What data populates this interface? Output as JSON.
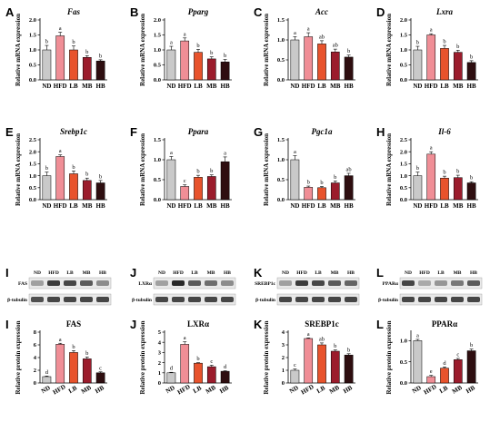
{
  "colors": {
    "ND": "#c9c9c9",
    "HFD": "#f08e96",
    "LB": "#e8532c",
    "MB": "#9b1c2c",
    "HB": "#2e0e10"
  },
  "chart_data": [
    {
      "panel": "A",
      "title": "Fas",
      "type": "bar",
      "ylabel": "Relative mRNA expression",
      "categories": [
        "ND",
        "HFD",
        "LB",
        "MB",
        "HB"
      ],
      "values": [
        1.0,
        1.47,
        1.0,
        0.75,
        0.63
      ],
      "errors": [
        0.15,
        0.12,
        0.13,
        0.06,
        0.04
      ],
      "letters": [
        "b",
        "a",
        "b",
        "b",
        "b"
      ],
      "ylim": [
        0,
        2.0
      ],
      "yticks": [
        "0.0",
        "0.5",
        "1.0",
        "1.5",
        "2.0"
      ]
    },
    {
      "panel": "B",
      "title": "Pparg",
      "type": "bar",
      "ylabel": "Relative mRNA expression",
      "categories": [
        "ND",
        "HFD",
        "LB",
        "MB",
        "HB"
      ],
      "values": [
        1.0,
        1.3,
        0.92,
        0.7,
        0.6
      ],
      "errors": [
        0.12,
        0.1,
        0.1,
        0.07,
        0.08
      ],
      "letters": [
        "a",
        "a",
        "b",
        "b",
        "b"
      ],
      "ylim": [
        0,
        2.0
      ],
      "yticks": [
        "0.0",
        "0.5",
        "1.0",
        "1.5",
        "2.0"
      ]
    },
    {
      "panel": "C",
      "title": "Acc",
      "type": "bar",
      "ylabel": "Relative mRNA expression",
      "categories": [
        "ND",
        "HFD",
        "LB",
        "MB",
        "HB"
      ],
      "values": [
        1.0,
        1.08,
        0.9,
        0.7,
        0.57
      ],
      "errors": [
        0.08,
        0.1,
        0.08,
        0.07,
        0.05
      ],
      "letters": [
        "a",
        "a",
        "ab",
        "ab",
        "b"
      ],
      "ylim": [
        0,
        1.5
      ],
      "yticks": [
        "0.0",
        "0.5",
        "1.0",
        "1.5"
      ]
    },
    {
      "panel": "D",
      "title": "Lxra",
      "type": "bar",
      "ylabel": "Relative mRNA expression",
      "categories": [
        "ND",
        "HFD",
        "LB",
        "MB",
        "HB"
      ],
      "values": [
        1.0,
        1.5,
        1.05,
        0.92,
        0.58
      ],
      "errors": [
        0.12,
        0.04,
        0.1,
        0.07,
        0.06
      ],
      "letters": [
        "b",
        "a",
        "b",
        "b",
        "b"
      ],
      "ylim": [
        0,
        2.0
      ],
      "yticks": [
        "0.0",
        "0.5",
        "1.0",
        "1.5",
        "2.0"
      ]
    },
    {
      "panel": "E",
      "title": "Srebp1c",
      "type": "bar",
      "ylabel": "Relative mRNA expression",
      "categories": [
        "ND",
        "HFD",
        "LB",
        "MB",
        "HB"
      ],
      "values": [
        1.0,
        1.8,
        1.08,
        0.8,
        0.7
      ],
      "errors": [
        0.15,
        0.07,
        0.12,
        0.1,
        0.1
      ],
      "letters": [
        "b",
        "a",
        "b",
        "b",
        "b"
      ],
      "ylim": [
        0,
        2.5
      ],
      "yticks": [
        "0.0",
        "0.5",
        "1.0",
        "1.5",
        "2.0",
        "2.5"
      ]
    },
    {
      "panel": "F",
      "title": "Ppara",
      "type": "bar",
      "ylabel": "Relative mRNA expression",
      "categories": [
        "ND",
        "HFD",
        "LB",
        "MB",
        "HB"
      ],
      "values": [
        1.0,
        0.33,
        0.56,
        0.58,
        0.95
      ],
      "errors": [
        0.08,
        0.04,
        0.05,
        0.04,
        0.12
      ],
      "letters": [
        "a",
        "c",
        "b",
        "b",
        "a"
      ],
      "ylim": [
        0,
        1.5
      ],
      "yticks": [
        "0.0",
        "0.5",
        "1.0",
        "1.5"
      ]
    },
    {
      "panel": "G",
      "title": "Pgc1a",
      "type": "bar",
      "ylabel": "Relative mRNA expression",
      "categories": [
        "ND",
        "HFD",
        "LB",
        "MB",
        "HB"
      ],
      "values": [
        1.0,
        0.31,
        0.3,
        0.42,
        0.6
      ],
      "errors": [
        0.1,
        0.03,
        0.03,
        0.05,
        0.06
      ],
      "letters": [
        "a",
        "b",
        "b",
        "b",
        "ab"
      ],
      "ylim": [
        0,
        1.5
      ],
      "yticks": [
        "0.0",
        "0.5",
        "1.0",
        "1.5"
      ]
    },
    {
      "panel": "H",
      "title": "Il-6",
      "type": "bar",
      "ylabel": "Relative mRNA expression",
      "categories": [
        "ND",
        "HFD",
        "LB",
        "MB",
        "HB"
      ],
      "values": [
        1.0,
        1.9,
        0.9,
        0.92,
        0.7
      ],
      "errors": [
        0.15,
        0.1,
        0.08,
        0.1,
        0.05
      ],
      "letters": [
        "b",
        "a",
        "b",
        "b",
        "b"
      ],
      "ylim": [
        0,
        2.5
      ],
      "yticks": [
        "0.0",
        "0.5",
        "1.0",
        "1.5",
        "2.0",
        "2.5"
      ]
    },
    {
      "panel": "I",
      "title": "FAS",
      "type": "bar",
      "ylabel": "Relative protein expression",
      "categories": [
        "ND",
        "HFD",
        "LB",
        "MB",
        "HB"
      ],
      "values": [
        1.0,
        6.1,
        4.8,
        3.8,
        1.6
      ],
      "errors": [
        0.1,
        0.15,
        0.3,
        0.3,
        0.15
      ],
      "letters": [
        "d",
        "a",
        "b",
        "b",
        "c"
      ],
      "ylim": [
        0,
        8
      ],
      "yticks": [
        "0",
        "2",
        "4",
        "6",
        "8"
      ]
    },
    {
      "panel": "J",
      "title": "LXRα",
      "type": "bar",
      "ylabel": "Relative protein expression",
      "categories": [
        "ND",
        "HFD",
        "LB",
        "MB",
        "HB"
      ],
      "values": [
        1.0,
        3.8,
        1.95,
        1.6,
        1.15
      ],
      "errors": [
        0.05,
        0.25,
        0.05,
        0.15,
        0.05
      ],
      "letters": [
        "d",
        "a",
        "b",
        "c",
        "d"
      ],
      "ylim": [
        0,
        5
      ],
      "yticks": [
        "0",
        "1",
        "2",
        "3",
        "4",
        "5"
      ]
    },
    {
      "panel": "K",
      "title": "SREBP1c",
      "type": "bar",
      "ylabel": "Relative protein expression",
      "categories": [
        "ND",
        "HFD",
        "LB",
        "MB",
        "HB"
      ],
      "values": [
        1.0,
        3.5,
        3.0,
        2.5,
        2.2
      ],
      "errors": [
        0.1,
        0.05,
        0.15,
        0.1,
        0.1
      ],
      "letters": [
        "c",
        "a",
        "ab",
        "b",
        "b"
      ],
      "ylim": [
        0,
        4
      ],
      "yticks": [
        "0",
        "1",
        "2",
        "3",
        "4"
      ]
    },
    {
      "panel": "L",
      "title": "PPARα",
      "type": "bar",
      "ylabel": "Relative protein expression",
      "categories": [
        "ND",
        "HFD",
        "LB",
        "MB",
        "HB"
      ],
      "values": [
        1.0,
        0.15,
        0.35,
        0.55,
        0.76
      ],
      "errors": [
        0.03,
        0.03,
        0.03,
        0.03,
        0.04
      ],
      "letters": [
        "a",
        "e",
        "d",
        "c",
        "b"
      ],
      "ylim": [
        0,
        1.2
      ],
      "yticks": [
        "0.0",
        "0.5",
        "1.0"
      ]
    }
  ],
  "blots": [
    {
      "panel": "I",
      "categories": [
        "ND",
        "HFD",
        "LB",
        "MB",
        "HB"
      ],
      "rows": [
        "FAS",
        "β-tubulin"
      ]
    },
    {
      "panel": "J",
      "categories": [
        "ND",
        "HFD",
        "LB",
        "MB",
        "HB"
      ],
      "rows": [
        "LXRα",
        "β-tubulin"
      ]
    },
    {
      "panel": "K",
      "categories": [
        "ND",
        "HFD",
        "LB",
        "MB",
        "HB"
      ],
      "rows": [
        "SREBP1c",
        "β-tubulin"
      ]
    },
    {
      "panel": "L",
      "categories": [
        "ND",
        "HFD",
        "LB",
        "MB",
        "HB"
      ],
      "rows": [
        "PPARα",
        "β-tubulin"
      ]
    }
  ]
}
